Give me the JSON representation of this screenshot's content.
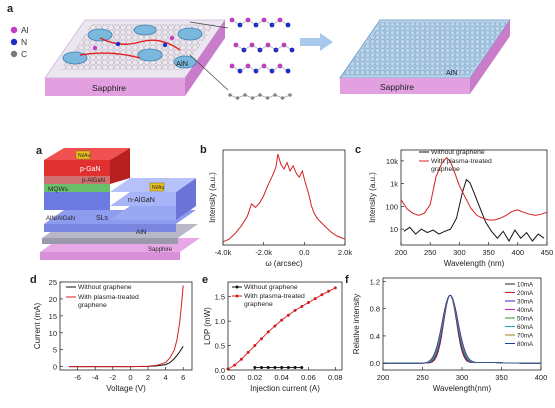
{
  "panel_labels": {
    "top": "a",
    "a": "a",
    "b": "b",
    "c": "c",
    "d": "d",
    "e": "e",
    "f": "f"
  },
  "panel_a_top": {
    "legend": [
      {
        "label": "Al",
        "color": "#c03cc0"
      },
      {
        "label": "N",
        "color": "#1a2fc0"
      },
      {
        "label": "C",
        "color": "#7a7a7a"
      }
    ],
    "substrate_left": "Sapphire",
    "substrate_right": "Sapphire",
    "aln_left": "AlN",
    "aln_right": "AlN"
  },
  "device_stack": {
    "layers": [
      "p-GaN",
      "p-AlGaN",
      "MQWs",
      "n-AlGaN",
      "SLs",
      "AlN/AlGaN",
      "AlN",
      "Sapphire"
    ],
    "contact_label": "Ni/Au"
  },
  "chart_data": [
    {
      "panel": "b",
      "type": "line",
      "xlabel": "ω (arcsec)",
      "ylabel": "Intensity (a.u.)",
      "xticks": [
        "-4.0k",
        "-2.0k",
        "0.0",
        "2.0k"
      ],
      "xlim": [
        -4000,
        2000
      ],
      "log_y": true,
      "series": [
        {
          "color": "#d42020",
          "x": [
            -4000,
            -3700,
            -3400,
            -3100,
            -2800,
            -2600,
            -2400,
            -2200,
            -2000,
            -1800,
            -1600,
            -1400,
            -1300,
            -1150,
            -1000,
            -850,
            -700,
            -550,
            -400,
            -250,
            -100,
            50,
            200,
            350,
            500,
            650,
            800,
            1000,
            1300,
            1600,
            2000
          ],
          "y": [
            0.1,
            0.12,
            0.18,
            0.3,
            0.6,
            1.4,
            1.1,
            1.5,
            2.5,
            5,
            9,
            18,
            45,
            22,
            16,
            25,
            14,
            20,
            12,
            9,
            14,
            6,
            3,
            1.2,
            0.7,
            0.5,
            0.4,
            0.3,
            0.2,
            0.15,
            0.12
          ]
        }
      ]
    },
    {
      "panel": "c",
      "type": "line",
      "xlabel": "Wavelength (nm)",
      "ylabel": "Intensity (a.u.)",
      "yticks": [
        "10",
        "100",
        "1k",
        "10k"
      ],
      "xticks": [
        "200",
        "250",
        "300",
        "350",
        "400",
        "450"
      ],
      "xlim": [
        200,
        450
      ],
      "log_y": true,
      "series": [
        {
          "name": "Without graphene",
          "color": "#111111",
          "x": [
            205,
            215,
            225,
            235,
            245,
            255,
            265,
            275,
            285,
            295,
            305,
            312,
            318,
            325,
            335,
            345,
            355,
            365,
            375,
            385,
            395,
            405,
            415,
            425,
            435,
            445
          ],
          "y": [
            8,
            12,
            6,
            10,
            7,
            9,
            6,
            8,
            10,
            30,
            400,
            1500,
            1100,
            400,
            90,
            20,
            8,
            4,
            8,
            3,
            9,
            4,
            7,
            3,
            6,
            4
          ]
        },
        {
          "name": "With plasma-treated graphene",
          "color": "#d42020",
          "x": [
            200,
            210,
            220,
            230,
            240,
            250,
            260,
            270,
            278,
            285,
            292,
            300,
            310,
            320,
            330,
            340,
            350,
            360,
            370,
            380,
            390,
            400,
            410,
            420,
            430,
            440,
            450
          ],
          "y": [
            200,
            80,
            50,
            40,
            50,
            120,
            2000,
            8000,
            14000,
            9000,
            3000,
            800,
            250,
            80,
            40,
            30,
            25,
            25,
            30,
            40,
            60,
            70,
            55,
            45,
            40,
            45,
            55
          ]
        }
      ]
    },
    {
      "panel": "d",
      "type": "line",
      "xlabel": "Voltage (V)",
      "ylabel": "Current (mA)",
      "xticks": [
        "-6",
        "-4",
        "-2",
        "0",
        "2",
        "4",
        "6"
      ],
      "yticks": [
        "0",
        "5",
        "10",
        "15",
        "20",
        "25"
      ],
      "xlim": [
        -8,
        7
      ],
      "ylim": [
        -1,
        25
      ],
      "series": [
        {
          "name": "Without graphene",
          "color": "#111111",
          "x": [
            -7,
            -6,
            -4,
            -2,
            0,
            2,
            3,
            4,
            4.5,
            5,
            5.5,
            6
          ],
          "y": [
            0,
            0,
            0,
            0,
            0,
            0.05,
            0.2,
            0.6,
            1.2,
            2.4,
            4,
            6
          ]
        },
        {
          "name": "With plasma-treated graphene",
          "color": "#d42020",
          "x": [
            -7,
            -6,
            -4,
            -2,
            0,
            2,
            3,
            4,
            4.5,
            5,
            5.3,
            5.6,
            5.8,
            6
          ],
          "y": [
            0,
            0,
            0,
            0,
            0,
            0.1,
            0.4,
            1.2,
            2.6,
            5,
            8,
            13,
            18,
            24
          ]
        }
      ]
    },
    {
      "panel": "e",
      "type": "line",
      "xlabel": "Injection current (A)",
      "ylabel": "LOP (mW)",
      "xticks": [
        "0.00",
        "0.02",
        "0.04",
        "0.06",
        "0.08"
      ],
      "yticks": [
        "0.0",
        "0.5",
        "1.0",
        "1.5"
      ],
      "xlim": [
        0,
        0.085
      ],
      "ylim": [
        0,
        1.8
      ],
      "series": [
        {
          "name": "Without graphene",
          "color": "#111111",
          "x": [
            0.02,
            0.025,
            0.03,
            0.035,
            0.04,
            0.045,
            0.05,
            0.055
          ],
          "y": [
            0.05,
            0.05,
            0.05,
            0.05,
            0.05,
            0.05,
            0.05,
            0.05
          ]
        },
        {
          "name": "With plasma-treated graphene",
          "color": "#d42020",
          "x": [
            0.0,
            0.005,
            0.01,
            0.015,
            0.02,
            0.025,
            0.03,
            0.035,
            0.04,
            0.045,
            0.05,
            0.055,
            0.06,
            0.065,
            0.07,
            0.075,
            0.08
          ],
          "y": [
            0.02,
            0.1,
            0.22,
            0.36,
            0.5,
            0.64,
            0.78,
            0.9,
            1.02,
            1.12,
            1.22,
            1.3,
            1.38,
            1.46,
            1.54,
            1.61,
            1.68
          ]
        }
      ]
    },
    {
      "panel": "f",
      "type": "line",
      "xlabel": "Wavelength(nm)",
      "ylabel": "Relative intensity",
      "xticks": [
        "200",
        "250",
        "300",
        "350",
        "400"
      ],
      "yticks": [
        "0.0",
        "0.4",
        "0.8",
        "1.2"
      ],
      "xlim": [
        200,
        400
      ],
      "ylim": [
        -0.1,
        1.25
      ],
      "legend_position": "top-right",
      "series": [
        {
          "name": "10mA",
          "color": "#222222"
        },
        {
          "name": "20mA",
          "color": "#d42020"
        },
        {
          "name": "30mA",
          "color": "#2a2ad0"
        },
        {
          "name": "40mA",
          "color": "#c020c0"
        },
        {
          "name": "50mA",
          "color": "#20a020"
        },
        {
          "name": "60mA",
          "color": "#20a0c0"
        },
        {
          "name": "70mA",
          "color": "#a08020"
        },
        {
          "name": "80mA",
          "color": "#2040a0"
        }
      ],
      "peak_x": 285,
      "peak_y": 1.0
    }
  ]
}
